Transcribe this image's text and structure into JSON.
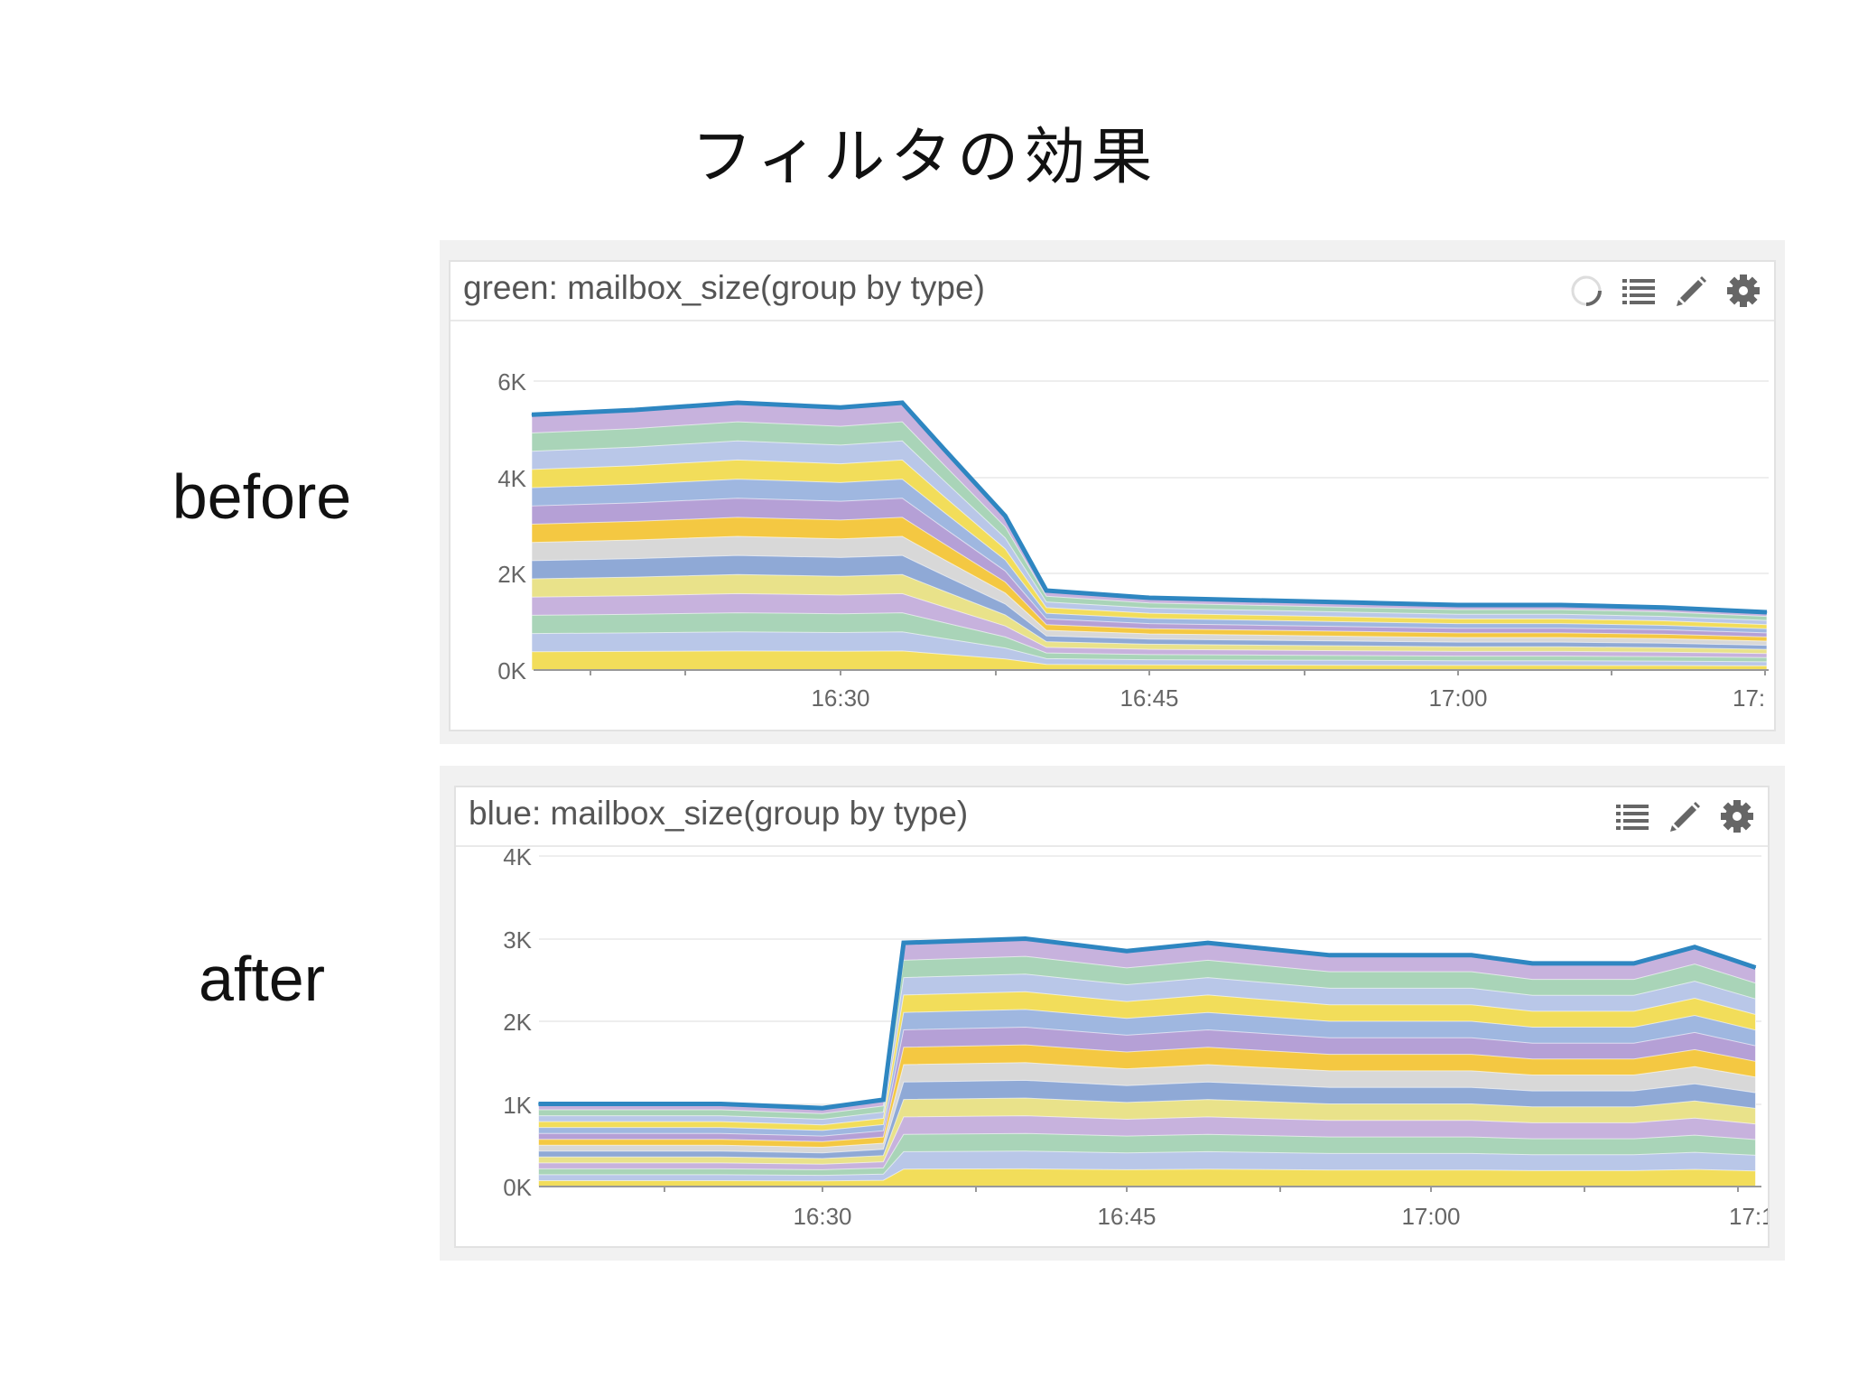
{
  "title": "フィルタの効果",
  "labels": {
    "before": "before",
    "after": "after"
  },
  "colors": {
    "edge": "#2e86c1",
    "bands": [
      "#9fb7e0",
      "#f2dd5a",
      "#b9c7e8",
      "#a9d4b8",
      "#c7b2dd",
      "#e9e28a",
      "#8fa9d6",
      "#d8d8d8",
      "#f4c842",
      "#b5a0d6"
    ]
  },
  "panels": [
    {
      "title": "green: mailbox_size(group by type)",
      "icons": [
        "loading-spinner-icon",
        "list-icon",
        "pencil-icon",
        "gear-icon"
      ],
      "yticks": [
        "6K",
        "4K",
        "2K",
        "0K"
      ],
      "xticks": [
        "16:30",
        "16:45",
        "17:00",
        "17:"
      ]
    },
    {
      "title": "blue: mailbox_size(group by type)",
      "icons": [
        "list-icon",
        "pencil-icon",
        "gear-icon"
      ],
      "yticks": [
        "4K",
        "3K",
        "2K",
        "1K",
        "0K"
      ],
      "xticks": [
        "16:30",
        "16:45",
        "17:00",
        "17:1"
      ]
    }
  ],
  "chart_data": [
    {
      "type": "area",
      "title": "green: mailbox_size(group by type)",
      "stacked": true,
      "ylim": [
        0,
        6000
      ],
      "x": [
        "16:15",
        "16:20",
        "16:25",
        "16:30",
        "16:33",
        "16:35",
        "16:38",
        "16:40",
        "16:45",
        "16:50",
        "16:55",
        "17:00",
        "17:05",
        "17:10",
        "17:15"
      ],
      "y": [
        5300,
        5400,
        5550,
        5450,
        5550,
        4600,
        3200,
        1650,
        1500,
        1450,
        1400,
        1350,
        1350,
        1300,
        1200
      ]
    },
    {
      "type": "area",
      "title": "blue: mailbox_size(group by type)",
      "stacked": true,
      "ylim": [
        0,
        4000
      ],
      "x": [
        "16:16",
        "16:20",
        "16:25",
        "16:30",
        "16:33",
        "16:34",
        "16:40",
        "16:45",
        "16:49",
        "16:55",
        "17:00",
        "17:02",
        "17:05",
        "17:10",
        "17:13",
        "17:16"
      ],
      "y": [
        1000,
        1000,
        1000,
        950,
        1050,
        2950,
        3000,
        2850,
        2950,
        2800,
        2800,
        2800,
        2700,
        2700,
        2900,
        2650
      ]
    }
  ]
}
